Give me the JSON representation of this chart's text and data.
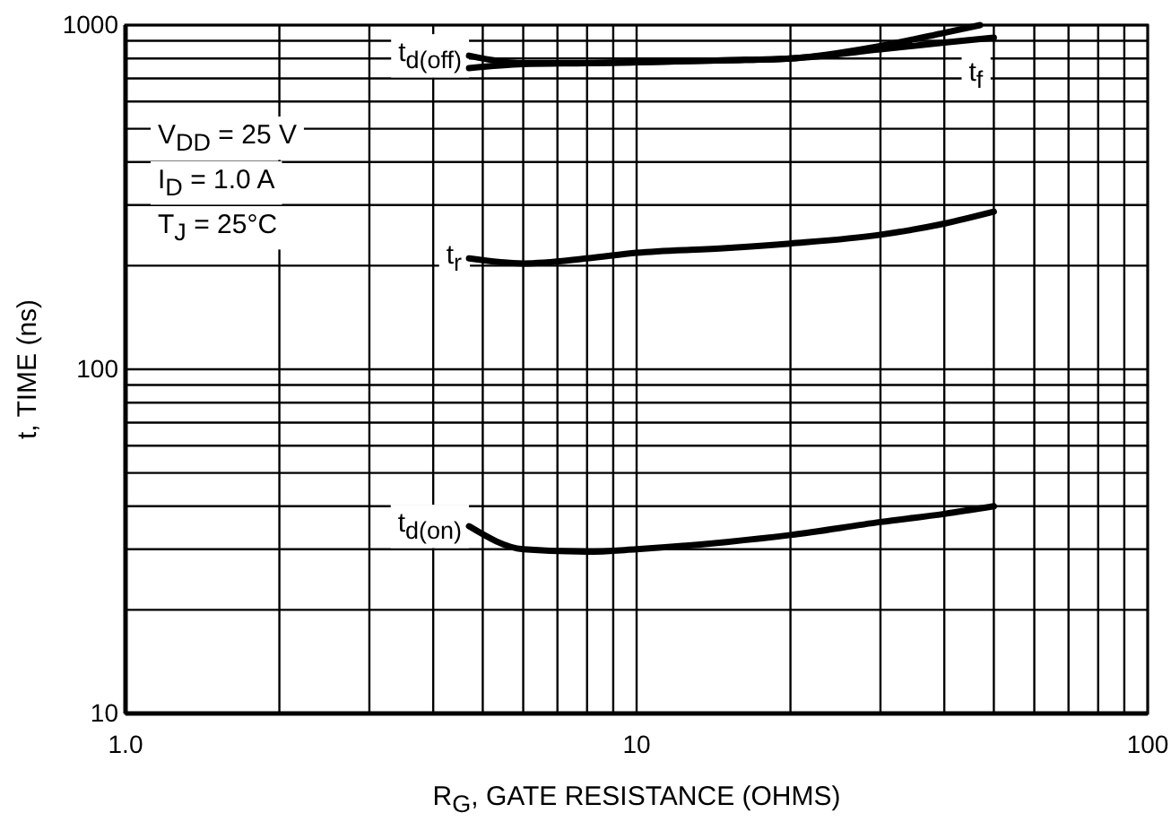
{
  "chart_data": {
    "type": "line",
    "xlabel": "R$_{G}$, GATE RESISTANCE (OHMS)",
    "ylabel": "t, TIME (ns)",
    "log": "xy",
    "grid": true,
    "line_style": "solid",
    "marker": "none",
    "xlim": [
      1,
      100
    ],
    "xticks": [
      {
        "value": 1,
        "label": "1.0"
      },
      {
        "value": 2,
        "label": null
      },
      {
        "value": 3,
        "label": null
      },
      {
        "value": 4,
        "label": null
      },
      {
        "value": 5,
        "label": null
      },
      {
        "value": 6,
        "label": null
      },
      {
        "value": 7,
        "label": null
      },
      {
        "value": 8,
        "label": null
      },
      {
        "value": 9,
        "label": null
      },
      10,
      {
        "value": 20,
        "label": null
      },
      {
        "value": 30,
        "label": null
      },
      {
        "value": 40,
        "label": null
      },
      {
        "value": 50,
        "label": null
      },
      {
        "value": 60,
        "label": null
      },
      {
        "value": 70,
        "label": null
      },
      {
        "value": 80,
        "label": null
      },
      {
        "value": 90,
        "label": null
      },
      100
    ],
    "ylim": [
      10,
      1000
    ],
    "yticks": [
      10,
      {
        "value": 20,
        "label": null
      },
      {
        "value": 30,
        "label": null
      },
      {
        "value": 40,
        "label": null
      },
      {
        "value": 50,
        "label": null
      },
      {
        "value": 60,
        "label": null
      },
      {
        "value": 70,
        "label": null
      },
      {
        "value": 80,
        "label": null
      },
      {
        "value": 90,
        "label": null
      },
      100,
      {
        "value": 200,
        "label": null
      },
      {
        "value": 300,
        "label": null
      },
      {
        "value": 400,
        "label": null
      },
      {
        "value": 500,
        "label": null
      },
      {
        "value": 600,
        "label": null
      },
      {
        "value": 700,
        "label": null
      },
      {
        "value": 800,
        "label": null
      },
      {
        "value": 900,
        "label": null
      },
      1000
    ],
    "series": [
      {
        "name": "t$_{d(off)}$",
        "color": "#000000",
        "x": [
          4.7,
          6,
          8,
          10,
          15,
          20,
          30,
          40,
          47
        ],
        "values": [
          815,
          775,
          775,
          780,
          790,
          800,
          870,
          950,
          1000
        ]
      },
      {
        "name": "t$_{f}$",
        "color": "#000000",
        "x": [
          4.7,
          6,
          8,
          10,
          15,
          20,
          30,
          40,
          50
        ],
        "values": [
          750,
          770,
          775,
          780,
          790,
          800,
          850,
          890,
          920
        ]
      },
      {
        "name": "t$_{r}$",
        "color": "#000000",
        "x": [
          4.7,
          6,
          8,
          10,
          15,
          20,
          30,
          40,
          50
        ],
        "values": [
          210,
          203,
          210,
          218,
          225,
          232,
          246,
          265,
          287
        ]
      },
      {
        "name": "t$_{d(on)}$",
        "color": "#000000",
        "x": [
          4.7,
          6,
          8,
          10,
          15,
          20,
          30,
          40,
          50
        ],
        "values": [
          35,
          30,
          29.5,
          30,
          31.5,
          33,
          36,
          38,
          40
        ]
      }
    ],
    "annotations": [
      "V$_{DD}$ = 25 V",
      "I$_{D}$ = 1.0 A",
      "T$_{J}$ = 25°C"
    ]
  }
}
